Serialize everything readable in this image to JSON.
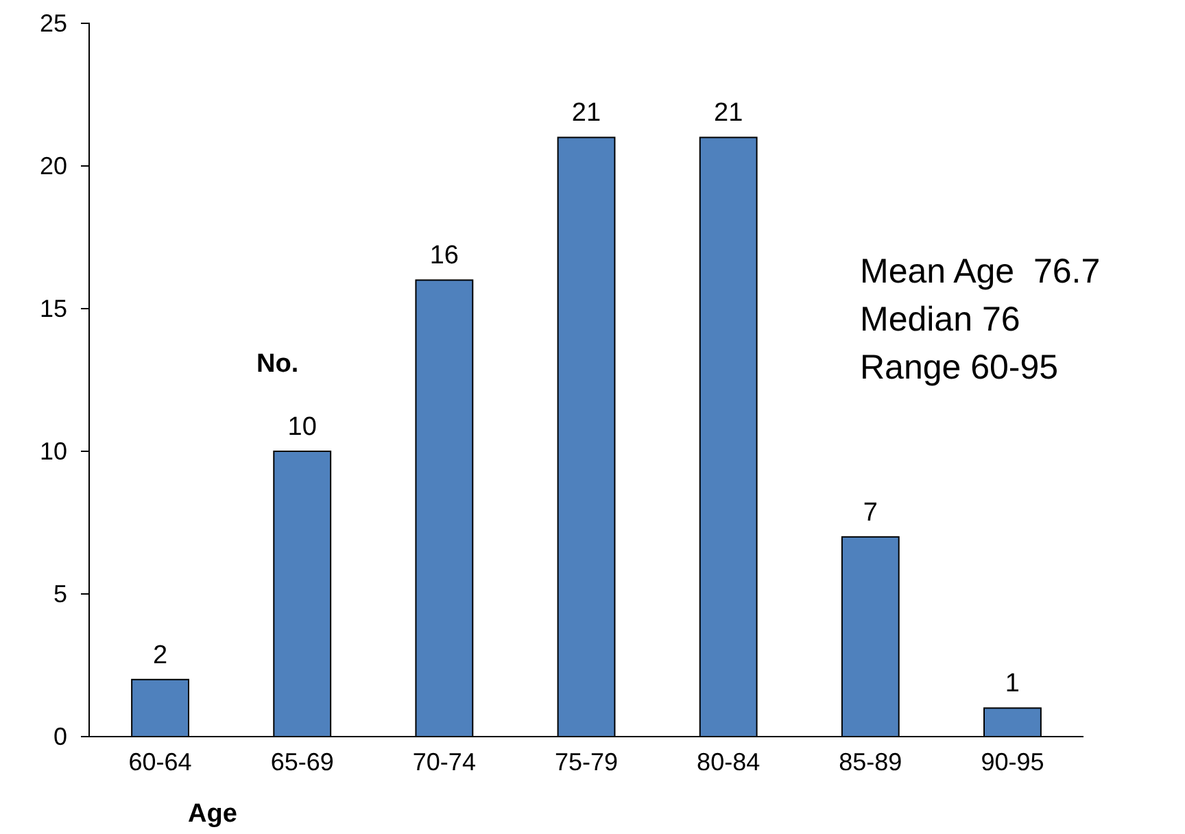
{
  "chart_data": {
    "type": "bar",
    "xlabel": "Age",
    "ylabel": "No.",
    "categories": [
      "60-64",
      "65-69",
      "70-74",
      "75-79",
      "80-84",
      "85-89",
      "90-95"
    ],
    "values": [
      2,
      10,
      16,
      21,
      21,
      7,
      1
    ],
    "color": "#4f81bd",
    "ylim": [
      0,
      25
    ],
    "yticks": [
      0,
      5,
      10,
      15,
      20,
      25
    ],
    "grid": false,
    "data_labels": true,
    "annotations": [
      "Mean Age  76.7",
      "Median 76",
      "Range 60-95"
    ]
  }
}
